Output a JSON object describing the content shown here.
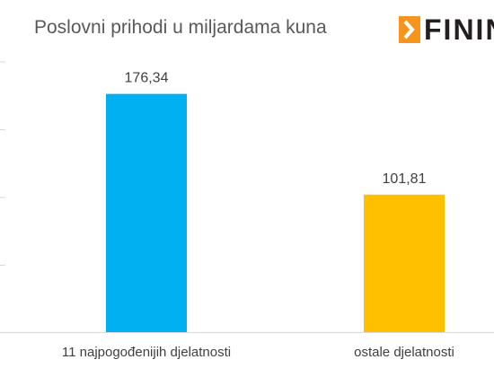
{
  "title": "Poslovni prihodi u miljardama kuna",
  "logo": {
    "text": "FININ",
    "icon": "arrow-chevron-right-icon",
    "accent": "#f7941d"
  },
  "chart_data": {
    "type": "bar",
    "title": "Poslovni prihodi u miljardama kuna",
    "categories": [
      "11 najpogođenijih djelatnosti",
      "ostale djelatnosti"
    ],
    "values": [
      176.34,
      101.81
    ],
    "value_labels": [
      "176,34",
      "101,81"
    ],
    "colors": [
      "#00b0f0",
      "#ffc000"
    ],
    "xlabel": "",
    "ylabel": "",
    "ylim": [
      0,
      200
    ],
    "grid": false,
    "legend": "none"
  }
}
